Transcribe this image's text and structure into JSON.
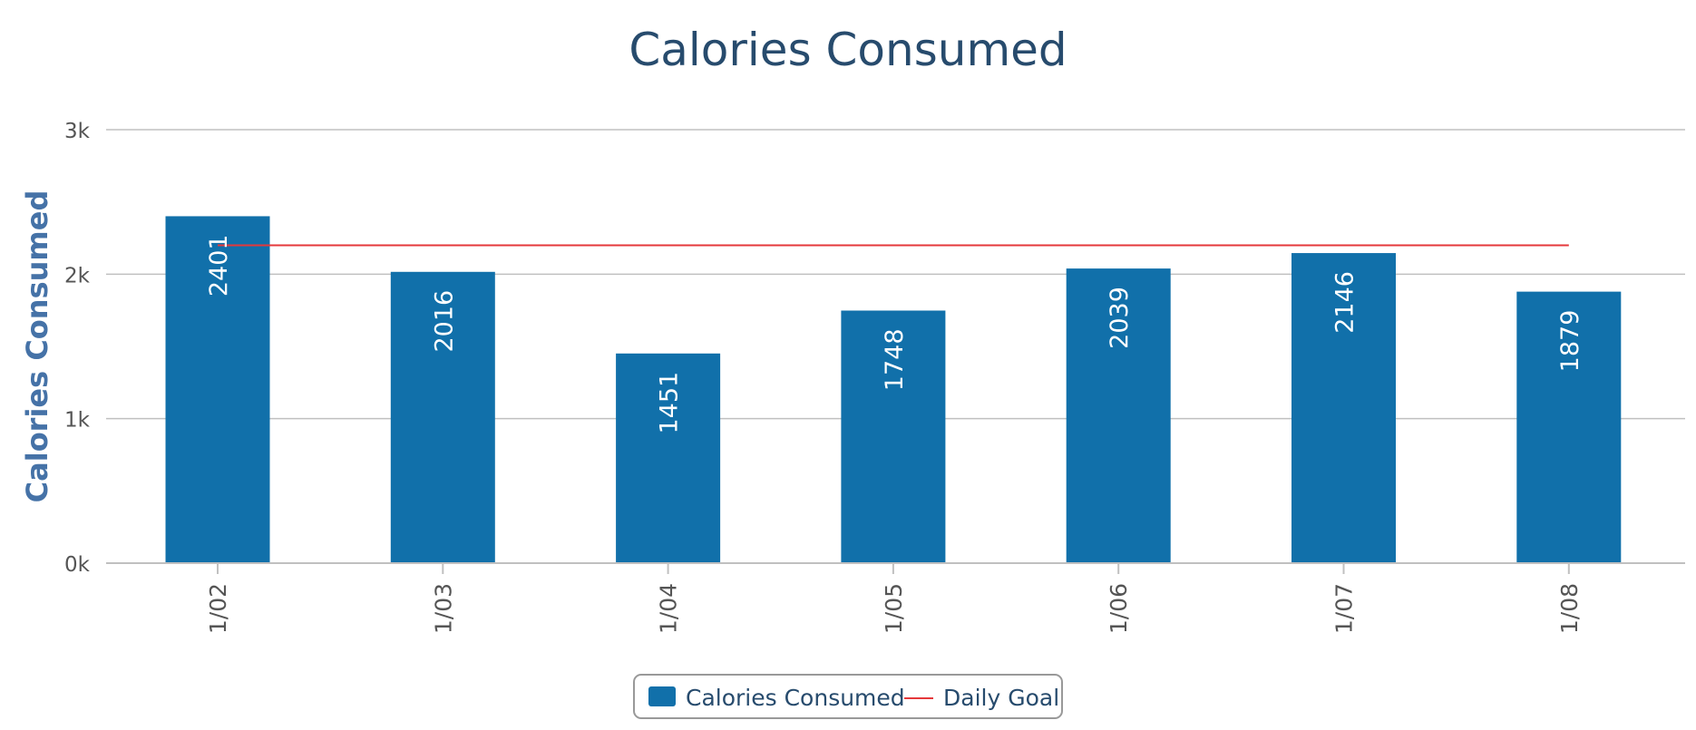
{
  "chart_data": {
    "type": "bar",
    "title": "Calories Consumed",
    "ylabel": "Calories Consumed",
    "xlabel": "",
    "categories": [
      "1/02",
      "1/03",
      "1/04",
      "1/05",
      "1/06",
      "1/07",
      "1/08"
    ],
    "values": [
      2401,
      2016,
      1451,
      1748,
      2039,
      2146,
      1879
    ],
    "goal": 2200,
    "ylim": [
      0,
      3000
    ],
    "yticks": [
      {
        "value": 0,
        "label": "0k"
      },
      {
        "value": 1000,
        "label": "1k"
      },
      {
        "value": 2000,
        "label": "2k"
      },
      {
        "value": 3000,
        "label": "3k"
      }
    ],
    "grid": true,
    "legend": {
      "position": "bottom-center",
      "items": [
        {
          "label": "Calories Consumed",
          "kind": "bar",
          "color": "#1170aa"
        },
        {
          "label": "Daily Goal",
          "kind": "line",
          "color": "#e5383b"
        }
      ]
    },
    "colors": {
      "bar": "#1170aa",
      "goal_line": "#e5383b",
      "title": "#274b6d",
      "axis_title": "#4572a7",
      "tick_label": "#555555",
      "grid": "#c0c0c0",
      "bar_label": "#ffffff"
    }
  }
}
